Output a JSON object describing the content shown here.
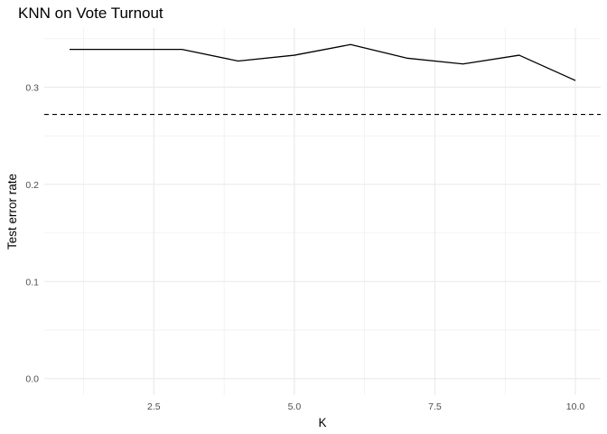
{
  "chart_data": {
    "type": "line",
    "title": "KNN on Vote Turnout",
    "xlabel": "K",
    "ylabel": "Test error rate",
    "x": [
      1,
      2,
      3,
      4,
      5,
      6,
      7,
      8,
      9,
      10
    ],
    "series": [
      {
        "values": [
          0.339,
          0.339,
          0.339,
          0.327,
          0.333,
          0.344,
          0.33,
          0.324,
          0.333,
          0.307
        ]
      }
    ],
    "reference_line": {
      "orientation": "horizontal",
      "y": 0.272,
      "style": "dashed"
    },
    "xlim": [
      0.55,
      10.45
    ],
    "ylim": [
      -0.017,
      0.361
    ],
    "x_ticks": [
      2.5,
      5.0,
      7.5,
      10.0
    ],
    "x_tick_labels": [
      "2.5",
      "5.0",
      "7.5",
      "10.0"
    ],
    "y_ticks": [
      0.0,
      0.1,
      0.2,
      0.3
    ],
    "y_tick_labels": [
      "0.0",
      "0.1",
      "0.2",
      "0.3"
    ],
    "grid": true,
    "colors": {
      "line": "#000000",
      "grid": "#ebebeb",
      "background": "#ffffff"
    }
  }
}
